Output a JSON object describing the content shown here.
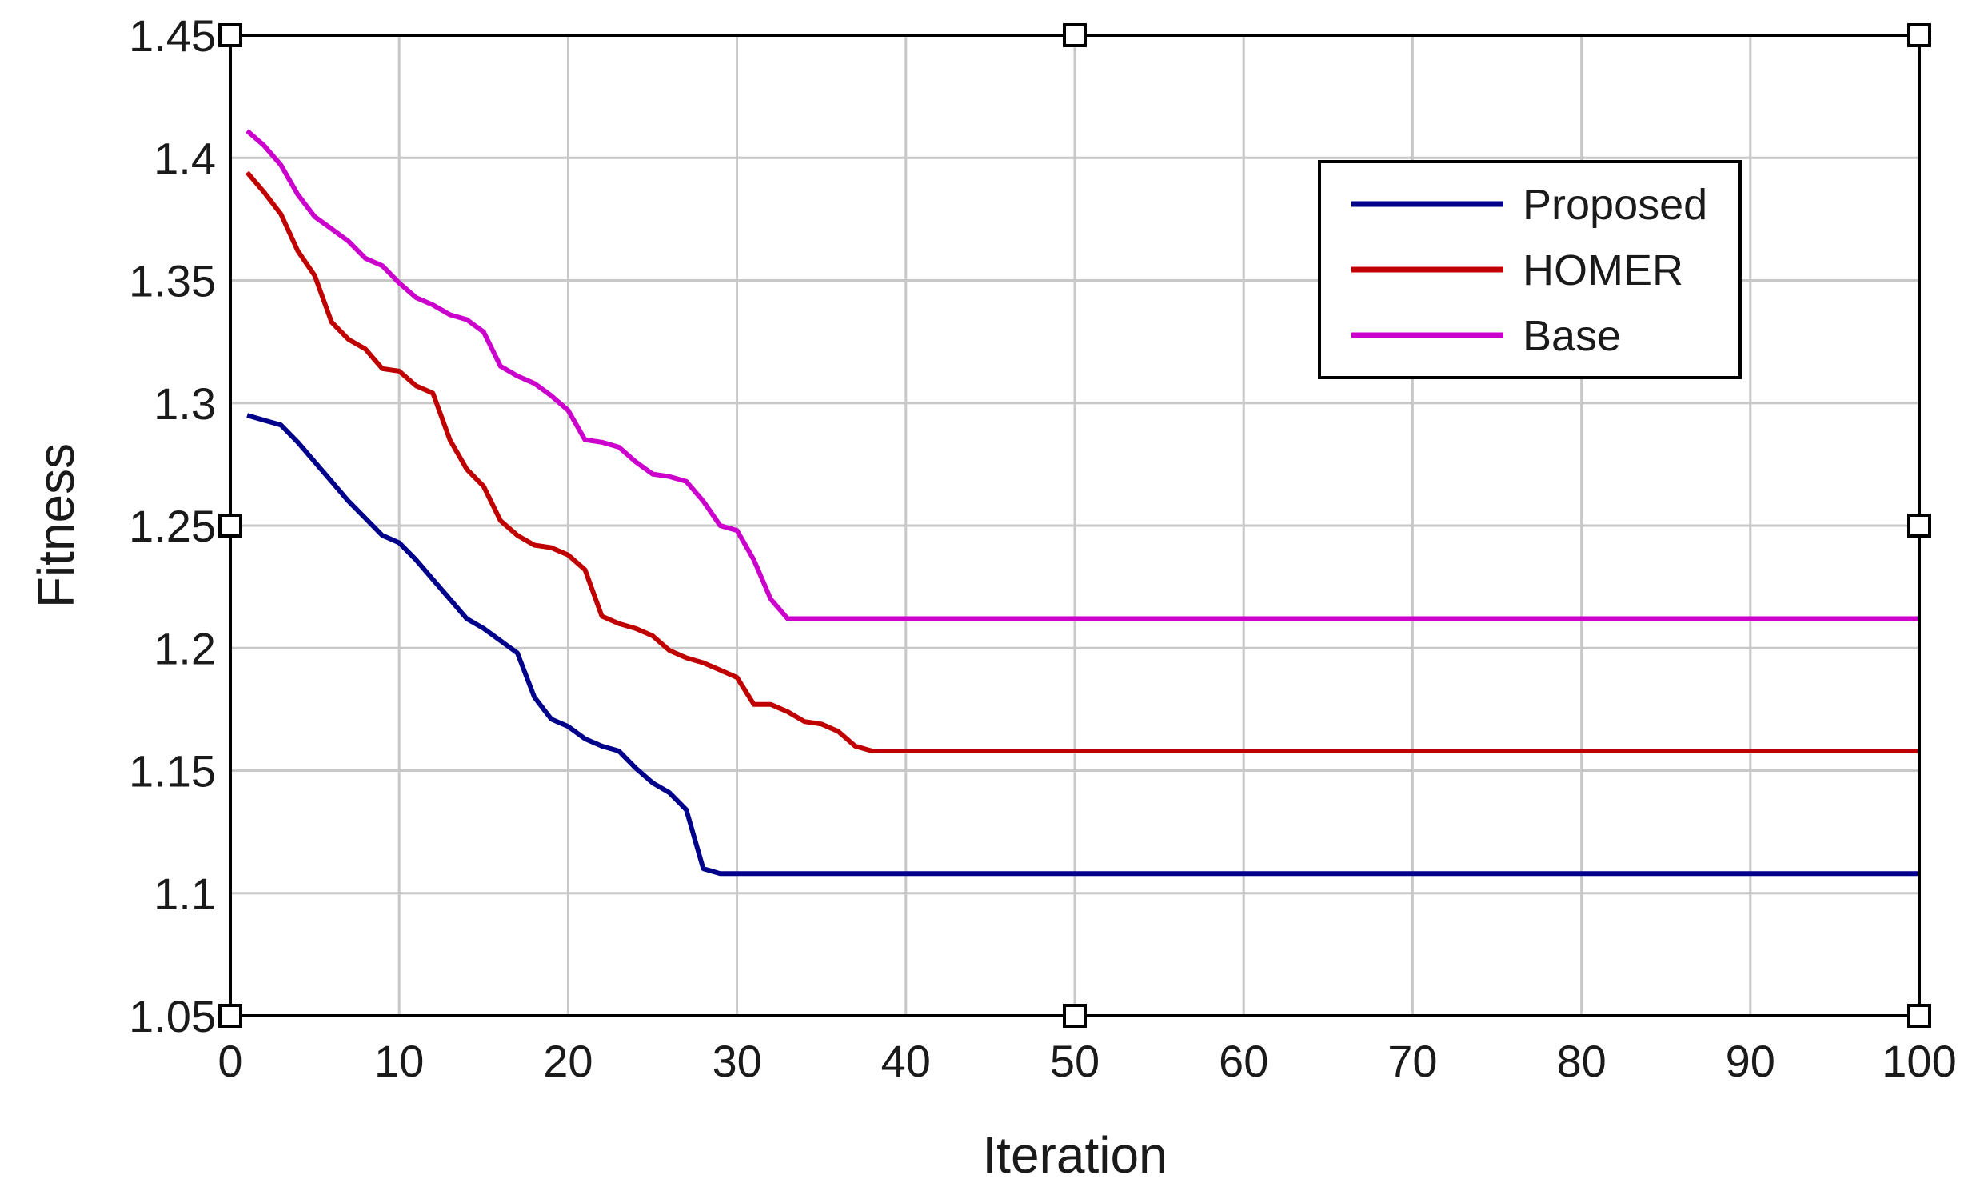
{
  "chart_data": {
    "type": "line",
    "title": "",
    "xlabel": "Iteration",
    "ylabel": "Fitness",
    "xlim": [
      0,
      100
    ],
    "ylim": [
      1.05,
      1.45
    ],
    "xticks": [
      0,
      10,
      20,
      30,
      40,
      50,
      60,
      70,
      80,
      90,
      100
    ],
    "xtick_labels": [
      "0",
      "10",
      "20",
      "30",
      "40",
      "50",
      "60",
      "70",
      "80",
      "90",
      "100"
    ],
    "yticks": [
      1.05,
      1.1,
      1.15,
      1.2,
      1.25,
      1.3,
      1.35,
      1.4,
      1.45
    ],
    "ytick_labels": [
      "1.05",
      "1.1",
      "1.15",
      "1.2",
      "1.25",
      "1.3",
      "1.35",
      "1.4",
      "1.45"
    ],
    "grid": true,
    "legend_position": "top-right",
    "series": [
      {
        "name": "Proposed",
        "color": "#00008b",
        "x": [
          1,
          2,
          3,
          4,
          5,
          6,
          7,
          8,
          9,
          10,
          11,
          12,
          13,
          14,
          15,
          16,
          17,
          18,
          19,
          20,
          21,
          22,
          23,
          24,
          25,
          26,
          27,
          28,
          29,
          30,
          35,
          40,
          50,
          60,
          70,
          80,
          90,
          100
        ],
        "y": [
          1.295,
          1.293,
          1.291,
          1.284,
          1.276,
          1.268,
          1.26,
          1.253,
          1.246,
          1.243,
          1.236,
          1.228,
          1.22,
          1.212,
          1.208,
          1.203,
          1.198,
          1.18,
          1.171,
          1.168,
          1.163,
          1.16,
          1.158,
          1.151,
          1.145,
          1.141,
          1.134,
          1.11,
          1.108,
          1.108,
          1.108,
          1.108,
          1.108,
          1.108,
          1.108,
          1.108,
          1.108,
          1.108
        ]
      },
      {
        "name": "HOMER",
        "color": "#c00000",
        "x": [
          1,
          2,
          3,
          4,
          5,
          6,
          7,
          8,
          9,
          10,
          11,
          12,
          13,
          14,
          15,
          16,
          17,
          18,
          19,
          20,
          21,
          22,
          23,
          24,
          25,
          26,
          27,
          28,
          29,
          30,
          31,
          32,
          33,
          34,
          35,
          36,
          37,
          38,
          40,
          50,
          60,
          70,
          80,
          90,
          100
        ],
        "y": [
          1.394,
          1.386,
          1.377,
          1.362,
          1.352,
          1.333,
          1.326,
          1.322,
          1.314,
          1.313,
          1.307,
          1.304,
          1.285,
          1.273,
          1.266,
          1.252,
          1.246,
          1.242,
          1.241,
          1.238,
          1.232,
          1.213,
          1.21,
          1.208,
          1.205,
          1.199,
          1.196,
          1.194,
          1.191,
          1.188,
          1.177,
          1.177,
          1.174,
          1.17,
          1.169,
          1.166,
          1.16,
          1.158,
          1.158,
          1.158,
          1.158,
          1.158,
          1.158,
          1.158,
          1.158
        ]
      },
      {
        "name": "Base",
        "color": "#cc00cc",
        "x": [
          1,
          2,
          3,
          4,
          5,
          6,
          7,
          8,
          9,
          10,
          11,
          12,
          13,
          14,
          15,
          16,
          17,
          18,
          19,
          20,
          21,
          22,
          23,
          24,
          25,
          26,
          27,
          28,
          29,
          30,
          31,
          32,
          33,
          34,
          40,
          50,
          60,
          70,
          80,
          90,
          100
        ],
        "y": [
          1.411,
          1.405,
          1.397,
          1.385,
          1.376,
          1.371,
          1.366,
          1.359,
          1.356,
          1.349,
          1.343,
          1.34,
          1.336,
          1.334,
          1.329,
          1.315,
          1.311,
          1.308,
          1.303,
          1.297,
          1.285,
          1.284,
          1.282,
          1.276,
          1.271,
          1.27,
          1.268,
          1.26,
          1.25,
          1.248,
          1.236,
          1.22,
          1.212,
          1.212,
          1.212,
          1.212,
          1.212,
          1.212,
          1.212,
          1.212,
          1.212
        ]
      }
    ],
    "marker_points": [
      {
        "x": 0,
        "y": 1.45
      },
      {
        "x": 50,
        "y": 1.45
      },
      {
        "x": 100,
        "y": 1.45
      },
      {
        "x": 0,
        "y": 1.25
      },
      {
        "x": 100,
        "y": 1.25
      },
      {
        "x": 0,
        "y": 1.05
      },
      {
        "x": 50,
        "y": 1.05
      },
      {
        "x": 100,
        "y": 1.05
      }
    ]
  }
}
